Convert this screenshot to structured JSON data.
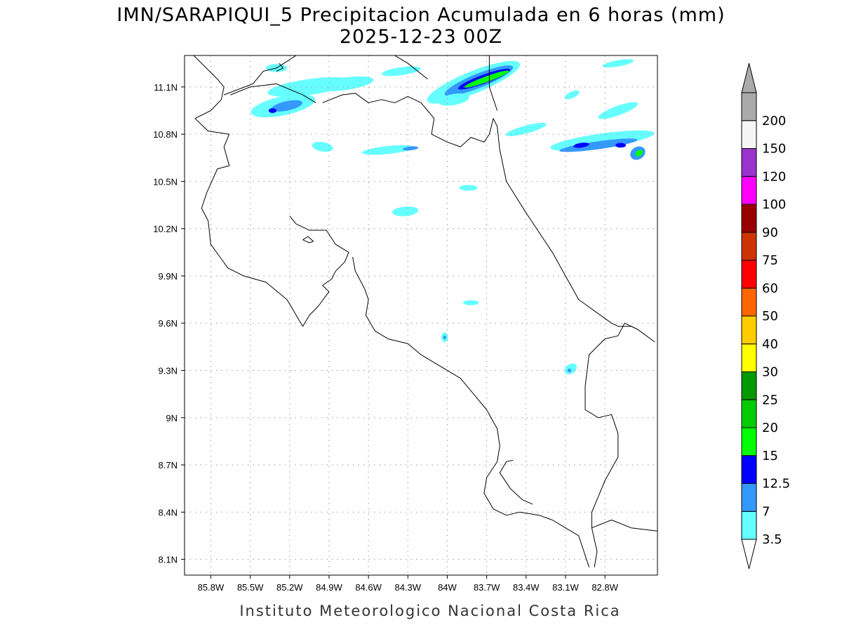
{
  "title": {
    "line1": "IMN/SARAPIQUI_5 Precipitacion Acumulada en 6 horas (mm)",
    "line2": "2025-12-23 00Z"
  },
  "footer": "Instituto Meteorologico Nacional Costa Rica",
  "axes": {
    "x_ticks": [
      "85.8W",
      "85.5W",
      "85.2W",
      "84.9W",
      "84.6W",
      "84.3W",
      "84W",
      "83.7W",
      "83.4W",
      "83.1W",
      "82.8W"
    ],
    "x_values": [
      -85.8,
      -85.5,
      -85.2,
      -84.9,
      -84.6,
      -84.3,
      -84.0,
      -83.7,
      -83.4,
      -83.1,
      -82.8
    ],
    "y_ticks": [
      "11.1N",
      "10.8N",
      "10.5N",
      "10.2N",
      "9.9N",
      "9.6N",
      "9.3N",
      "9N",
      "8.7N",
      "8.4N",
      "8.1N"
    ],
    "y_values": [
      11.1,
      10.8,
      10.5,
      10.2,
      9.9,
      9.6,
      9.3,
      9.0,
      8.7,
      8.4,
      8.1
    ],
    "lon_range": [
      -86.0,
      -82.4
    ],
    "lat_range": [
      8.0,
      11.3
    ],
    "grid": true
  },
  "colorbar": {
    "levels": [
      "3.5",
      "7",
      "12.5",
      "15",
      "20",
      "25",
      "30",
      "40",
      "50",
      "60",
      "75",
      "90",
      "100",
      "120",
      "150",
      "200"
    ],
    "colors": [
      "#66ffff",
      "#3399ff",
      "#0000ff",
      "#00ff00",
      "#00cc00",
      "#009900",
      "#ffff00",
      "#ffcc00",
      "#ff6600",
      "#ff0000",
      "#cc3300",
      "#990000",
      "#ff00ff",
      "#9933cc",
      "#f5f5f5",
      "#aaaaaa"
    ],
    "min_triangle_color": "#ffffff",
    "max_triangle_color": "#aaaaaa"
  },
  "precip_cells": [
    {
      "lon": -85.05,
      "lat": 11.1,
      "rx": 0.32,
      "ry": 0.05,
      "rot": -8,
      "color": "#66ffff"
    },
    {
      "lon": -84.78,
      "lat": 11.12,
      "rx": 0.22,
      "ry": 0.04,
      "rot": -8,
      "color": "#66ffff"
    },
    {
      "lon": -85.25,
      "lat": 10.98,
      "rx": 0.25,
      "ry": 0.06,
      "rot": -12,
      "color": "#66ffff"
    },
    {
      "lon": -85.22,
      "lat": 10.98,
      "rx": 0.12,
      "ry": 0.03,
      "rot": -12,
      "color": "#3399ff"
    },
    {
      "lon": -85.33,
      "lat": 10.95,
      "rx": 0.03,
      "ry": 0.015,
      "rot": 0,
      "color": "#0000ff"
    },
    {
      "lon": -85.3,
      "lat": 11.22,
      "rx": 0.08,
      "ry": 0.025,
      "rot": 0,
      "color": "#66ffff"
    },
    {
      "lon": -84.95,
      "lat": 10.72,
      "rx": 0.08,
      "ry": 0.03,
      "rot": 10,
      "color": "#66ffff"
    },
    {
      "lon": -84.45,
      "lat": 10.7,
      "rx": 0.2,
      "ry": 0.025,
      "rot": -6,
      "color": "#66ffff"
    },
    {
      "lon": -84.28,
      "lat": 10.71,
      "rx": 0.06,
      "ry": 0.012,
      "rot": -6,
      "color": "#3399ff"
    },
    {
      "lon": -83.8,
      "lat": 11.13,
      "rx": 0.38,
      "ry": 0.07,
      "rot": -22,
      "color": "#66ffff"
    },
    {
      "lon": -83.76,
      "lat": 11.14,
      "rx": 0.28,
      "ry": 0.045,
      "rot": -22,
      "color": "#3399ff"
    },
    {
      "lon": -83.72,
      "lat": 11.15,
      "rx": 0.21,
      "ry": 0.028,
      "rot": -20,
      "color": "#0000ff"
    },
    {
      "lon": -83.7,
      "lat": 11.15,
      "rx": 0.18,
      "ry": 0.018,
      "rot": -20,
      "color": "#00ff00"
    },
    {
      "lon": -83.95,
      "lat": 11.02,
      "rx": 0.12,
      "ry": 0.035,
      "rot": -10,
      "color": "#66ffff"
    },
    {
      "lon": -84.35,
      "lat": 11.2,
      "rx": 0.15,
      "ry": 0.025,
      "rot": -8,
      "color": "#66ffff"
    },
    {
      "lon": -83.4,
      "lat": 10.83,
      "rx": 0.16,
      "ry": 0.025,
      "rot": -15,
      "color": "#66ffff"
    },
    {
      "lon": -83.05,
      "lat": 11.05,
      "rx": 0.06,
      "ry": 0.02,
      "rot": -25,
      "color": "#66ffff"
    },
    {
      "lon": -82.82,
      "lat": 10.76,
      "rx": 0.4,
      "ry": 0.045,
      "rot": -8,
      "color": "#66ffff"
    },
    {
      "lon": -82.85,
      "lat": 10.73,
      "rx": 0.3,
      "ry": 0.025,
      "rot": -8,
      "color": "#3399ff"
    },
    {
      "lon": -82.98,
      "lat": 10.73,
      "rx": 0.06,
      "ry": 0.015,
      "rot": -8,
      "color": "#0000ff"
    },
    {
      "lon": -82.68,
      "lat": 10.73,
      "rx": 0.04,
      "ry": 0.015,
      "rot": 0,
      "color": "#0000ff"
    },
    {
      "lon": -82.55,
      "lat": 10.68,
      "rx": 0.06,
      "ry": 0.04,
      "rot": -30,
      "color": "#3399ff"
    },
    {
      "lon": -82.54,
      "lat": 10.68,
      "rx": 0.03,
      "ry": 0.018,
      "rot": -30,
      "color": "#00ff00"
    },
    {
      "lon": -82.7,
      "lat": 10.95,
      "rx": 0.16,
      "ry": 0.03,
      "rot": -20,
      "color": "#66ffff"
    },
    {
      "lon": -82.7,
      "lat": 11.25,
      "rx": 0.12,
      "ry": 0.02,
      "rot": -10,
      "color": "#66ffff"
    },
    {
      "lon": -84.32,
      "lat": 10.31,
      "rx": 0.1,
      "ry": 0.03,
      "rot": -5,
      "color": "#66ffff"
    },
    {
      "lon": -83.84,
      "lat": 10.46,
      "rx": 0.07,
      "ry": 0.018,
      "rot": 0,
      "color": "#66ffff"
    },
    {
      "lon": -83.82,
      "lat": 9.73,
      "rx": 0.06,
      "ry": 0.016,
      "rot": 0,
      "color": "#66ffff"
    },
    {
      "lon": -84.02,
      "lat": 9.51,
      "rx": 0.025,
      "ry": 0.03,
      "rot": 0,
      "color": "#66ffff"
    },
    {
      "lon": -84.02,
      "lat": 9.51,
      "rx": 0.012,
      "ry": 0.012,
      "rot": 0,
      "color": "#3399ff"
    },
    {
      "lon": -83.06,
      "lat": 9.31,
      "rx": 0.05,
      "ry": 0.03,
      "rot": -35,
      "color": "#66ffff"
    },
    {
      "lon": -83.07,
      "lat": 9.3,
      "rx": 0.015,
      "ry": 0.012,
      "rot": 0,
      "color": "#3399ff"
    }
  ],
  "coastlines": [
    [
      [
        -85.93,
        11.3
      ],
      [
        -85.75,
        11.15
      ],
      [
        -85.7,
        11.1
      ],
      [
        -85.72,
        11.02
      ],
      [
        -85.8,
        10.95
      ],
      [
        -85.92,
        10.9
      ],
      [
        -85.82,
        10.82
      ],
      [
        -85.66,
        10.8
      ],
      [
        -85.7,
        10.72
      ],
      [
        -85.66,
        10.6
      ],
      [
        -85.75,
        10.58
      ],
      [
        -85.83,
        10.43
      ],
      [
        -85.87,
        10.33
      ],
      [
        -85.82,
        10.25
      ],
      [
        -85.8,
        10.1
      ],
      [
        -85.73,
        10.02
      ],
      [
        -85.67,
        9.95
      ],
      [
        -85.55,
        9.9
      ],
      [
        -85.38,
        9.86
      ],
      [
        -85.22,
        9.75
      ],
      [
        -85.1,
        9.58
      ],
      [
        -85.05,
        9.65
      ],
      [
        -84.98,
        9.71
      ],
      [
        -84.9,
        9.8
      ],
      [
        -84.95,
        9.84
      ],
      [
        -84.88,
        9.88
      ],
      [
        -84.85,
        9.93
      ],
      [
        -84.78,
        9.99
      ],
      [
        -84.75,
        10.05
      ],
      [
        -84.85,
        10.1
      ],
      [
        -84.92,
        10.19
      ],
      [
        -85.05,
        10.19
      ],
      [
        -85.15,
        10.23
      ],
      [
        -85.2,
        10.28
      ]
    ],
    [
      [
        -85.1,
        10.13
      ],
      [
        -85.05,
        10.11
      ],
      [
        -85.02,
        10.12
      ],
      [
        -85.06,
        10.15
      ],
      [
        -85.1,
        10.13
      ]
    ],
    [
      [
        -84.72,
        10.02
      ],
      [
        -84.7,
        9.93
      ],
      [
        -84.63,
        9.82
      ],
      [
        -84.6,
        9.75
      ],
      [
        -84.62,
        9.65
      ],
      [
        -84.55,
        9.55
      ],
      [
        -84.45,
        9.5
      ],
      [
        -84.3,
        9.47
      ],
      [
        -84.2,
        9.4
      ],
      [
        -84.1,
        9.35
      ],
      [
        -83.9,
        9.25
      ],
      [
        -83.8,
        9.15
      ],
      [
        -83.7,
        9.05
      ],
      [
        -83.62,
        8.93
      ],
      [
        -83.6,
        8.82
      ],
      [
        -83.62,
        8.72
      ],
      [
        -83.7,
        8.62
      ],
      [
        -83.72,
        8.52
      ],
      [
        -83.65,
        8.42
      ],
      [
        -83.55,
        8.38
      ],
      [
        -83.45,
        8.4
      ],
      [
        -83.3,
        8.38
      ],
      [
        -83.2,
        8.35
      ],
      [
        -83.1,
        8.3
      ],
      [
        -83.0,
        8.25
      ],
      [
        -82.92,
        8.05
      ]
    ],
    [
      [
        -82.88,
        8.05
      ],
      [
        -82.86,
        8.15
      ],
      [
        -82.9,
        8.3
      ],
      [
        -82.75,
        8.35
      ],
      [
        -82.6,
        8.3
      ],
      [
        -82.4,
        8.28
      ]
    ],
    [
      [
        -83.5,
        8.73
      ],
      [
        -83.55,
        8.72
      ],
      [
        -83.6,
        8.65
      ],
      [
        -83.52,
        8.55
      ],
      [
        -83.43,
        8.48
      ],
      [
        -83.35,
        8.45
      ]
    ],
    [
      [
        -85.15,
        11.3
      ],
      [
        -85.3,
        11.22
      ],
      [
        -85.4,
        11.2
      ],
      [
        -85.48,
        11.12
      ],
      [
        -85.7,
        11.05
      ]
    ],
    [
      [
        -85.0,
        11.0
      ],
      [
        -85.1,
        11.05
      ],
      [
        -85.3,
        11.12
      ],
      [
        -85.5,
        11.1
      ],
      [
        -85.65,
        11.05
      ]
    ],
    [
      [
        -84.95,
        11.0
      ],
      [
        -84.8,
        11.05
      ],
      [
        -84.7,
        11.06
      ],
      [
        -84.6,
        11.0
      ],
      [
        -84.5,
        11.02
      ],
      [
        -84.4,
        11.0
      ],
      [
        -84.3,
        11.04
      ],
      [
        -84.2,
        11.0
      ],
      [
        -84.15,
        10.95
      ],
      [
        -84.1,
        10.9
      ],
      [
        -84.12,
        10.8
      ],
      [
        -84.0,
        10.75
      ],
      [
        -83.9,
        10.72
      ],
      [
        -83.82,
        10.78
      ],
      [
        -83.72,
        10.75
      ],
      [
        -83.68,
        10.8
      ],
      [
        -83.65,
        10.9
      ],
      [
        -83.62,
        10.85
      ],
      [
        -83.6,
        10.7
      ],
      [
        -83.55,
        10.5
      ],
      [
        -83.4,
        10.3
      ],
      [
        -83.2,
        10.05
      ],
      [
        -83.1,
        9.9
      ],
      [
        -83.0,
        9.75
      ],
      [
        -82.75,
        9.6
      ],
      [
        -82.7,
        9.58
      ],
      [
        -82.6,
        9.58
      ],
      [
        -82.55,
        9.56
      ],
      [
        -82.42,
        9.48
      ]
    ],
    [
      [
        -83.68,
        11.3
      ],
      [
        -83.68,
        11.1
      ],
      [
        -83.62,
        10.95
      ]
    ],
    [
      [
        -82.55,
        9.56
      ],
      [
        -82.65,
        9.6
      ],
      [
        -82.7,
        9.52
      ],
      [
        -82.8,
        9.5
      ],
      [
        -82.92,
        9.4
      ],
      [
        -82.95,
        9.2
      ],
      [
        -82.95,
        9.05
      ],
      [
        -82.85,
        9.0
      ],
      [
        -82.75,
        9.02
      ],
      [
        -82.7,
        8.9
      ],
      [
        -82.7,
        8.75
      ],
      [
        -82.8,
        8.6
      ],
      [
        -82.85,
        8.5
      ],
      [
        -82.9,
        8.4
      ],
      [
        -82.9,
        8.3
      ]
    ],
    [
      [
        -84.4,
        11.3
      ],
      [
        -84.3,
        11.25
      ],
      [
        -84.15,
        11.15
      ]
    ],
    [
      [
        -85.3,
        11.2
      ],
      [
        -85.25,
        11.22
      ],
      [
        -85.28,
        11.25
      ]
    ]
  ]
}
